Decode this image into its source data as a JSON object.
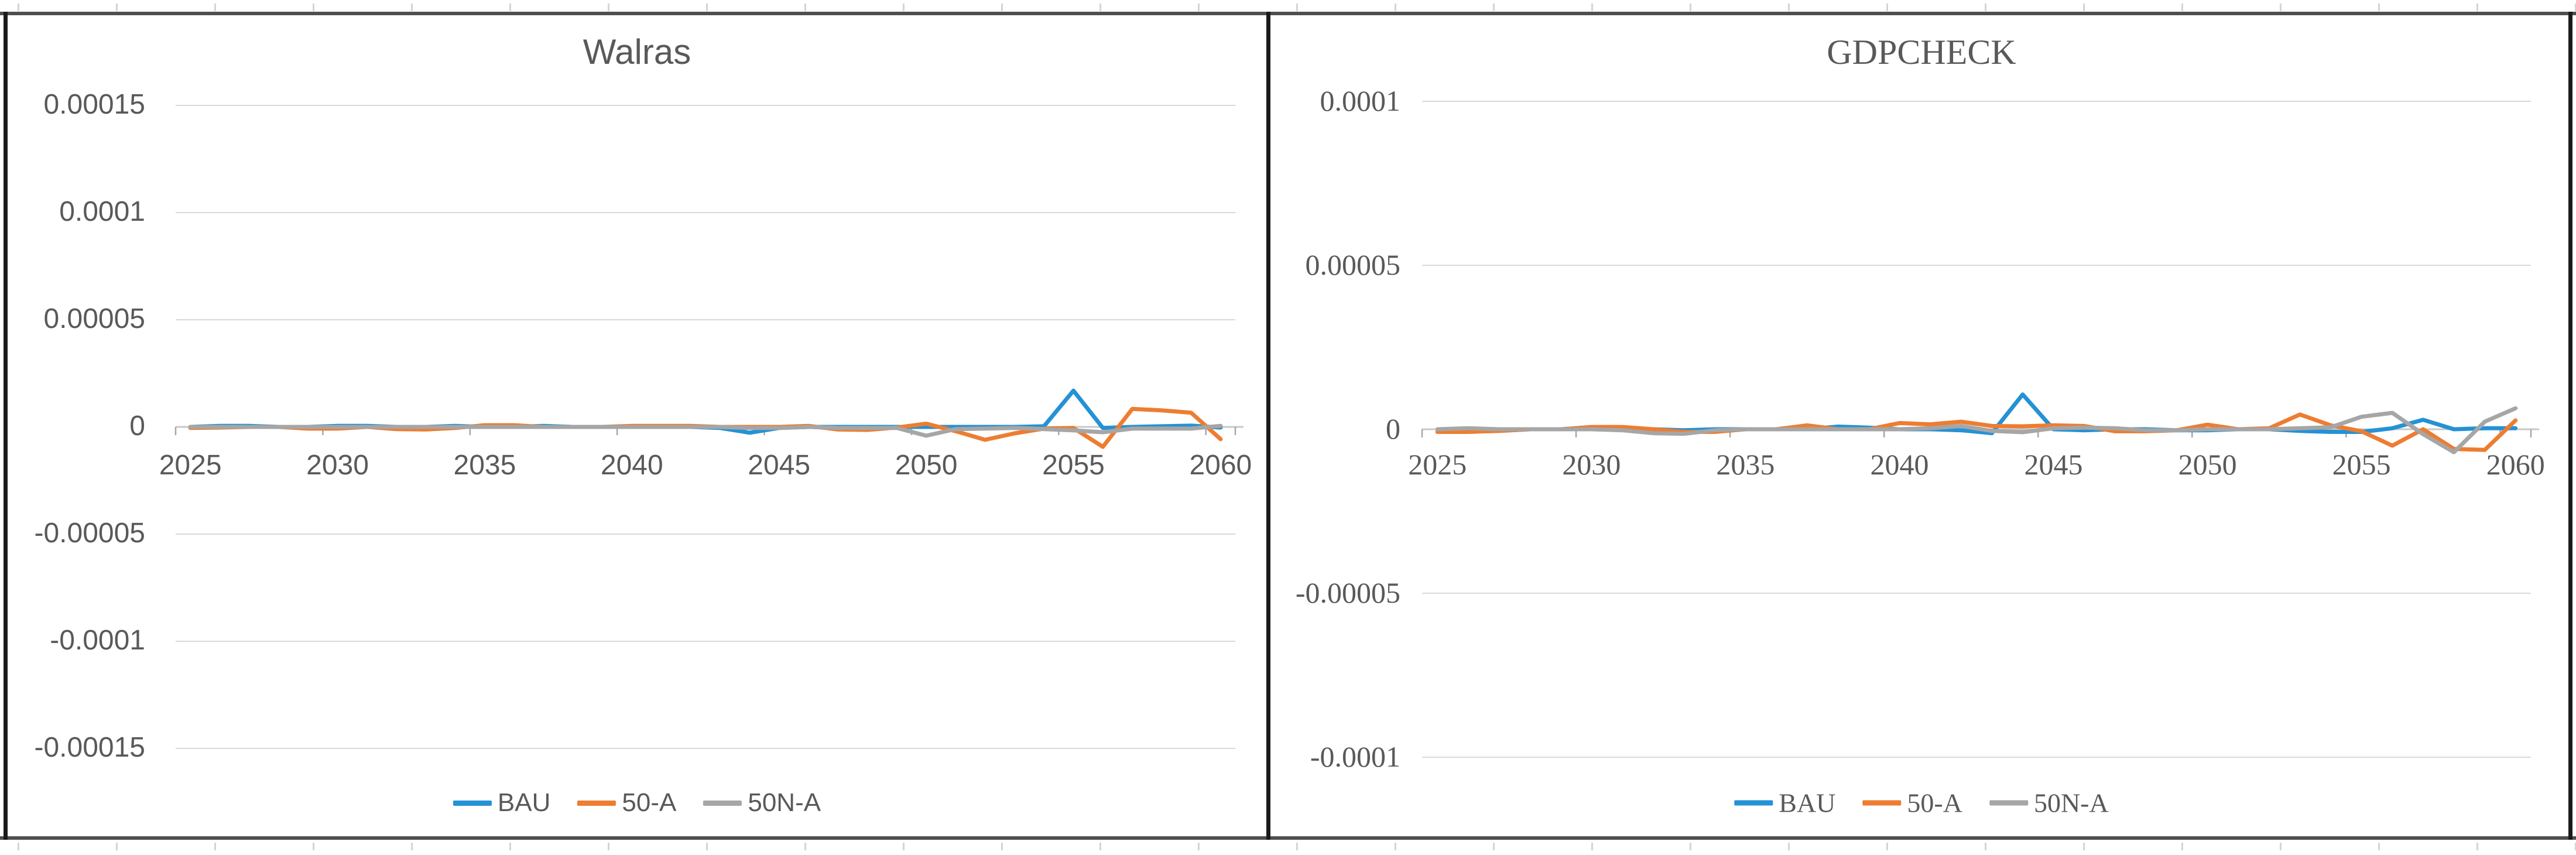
{
  "window": {
    "description": "Two Excel line charts side by side inside a dark frame"
  },
  "colors": {
    "series_blue": "#2492D5",
    "series_orange": "#ED7D31",
    "series_gray": "#A6A6A6",
    "gridline": "#D9D9D9",
    "axis_line": "#C8C8C8",
    "axis_tick": "#A6A6A6",
    "text": "#595959",
    "frame_horizontal": "#4F4F4F",
    "frame_vertical": "#1A1A1A",
    "outer_tick": "#D4D4D4",
    "background": "#FFFFFF"
  },
  "chart_data": [
    {
      "type": "line",
      "title": "Walras",
      "xlabel": "",
      "ylabel": "",
      "grid": true,
      "legend_position": "bottom",
      "ylim": [
        -0.000175,
        0.000175
      ],
      "y_ticks": [
        0.00015,
        0.0001,
        5e-05,
        0,
        -5e-05,
        -0.0001,
        -0.00015
      ],
      "y_tick_labels": [
        "0.00015",
        "0.0001",
        "0.00005",
        "0",
        "-0.00005",
        "-0.0001",
        "-0.00015"
      ],
      "x_tick_labels": [
        "2025",
        "2030",
        "2035",
        "2040",
        "2045",
        "2050",
        "2055",
        "2060"
      ],
      "years": [
        2025,
        2026,
        2027,
        2028,
        2029,
        2030,
        2031,
        2032,
        2033,
        2034,
        2035,
        2036,
        2037,
        2038,
        2039,
        2040,
        2041,
        2042,
        2043,
        2044,
        2045,
        2046,
        2047,
        2048,
        2049,
        2050,
        2051,
        2052,
        2053,
        2054,
        2055,
        2056,
        2057,
        2058,
        2059,
        2060
      ],
      "series": [
        {
          "name": "BAU",
          "color_key": "series_blue",
          "values": [
            0,
            5e-07,
            5e-07,
            0,
            0,
            5e-07,
            5e-07,
            0,
            0,
            5e-07,
            0,
            0,
            5e-07,
            0,
            0,
            0,
            0,
            0,
            -5e-07,
            -2.7e-06,
            -5e-07,
            0,
            0,
            0,
            0,
            0,
            0,
            0,
            0,
            3e-07,
            1.69e-05,
            -5e-07,
            0,
            3e-07,
            6e-07,
            -3e-07
          ]
        },
        {
          "name": "50-A",
          "color_key": "series_orange",
          "values": [
            -5e-07,
            -3e-07,
            0,
            0,
            -8e-07,
            -8e-07,
            0,
            -1e-06,
            -1.2e-06,
            -5e-07,
            8e-07,
            8e-07,
            0,
            0,
            0,
            5e-07,
            5e-07,
            5e-07,
            0,
            0,
            0,
            5e-07,
            -1.2e-06,
            -1.4e-06,
            -3e-07,
            1.5e-06,
            -2e-06,
            -6e-06,
            -3e-06,
            -8e-07,
            -5e-07,
            -9.3e-06,
            8.4e-06,
            7.7e-06,
            6.6e-06,
            -5.7e-06
          ]
        },
        {
          "name": "50N-A",
          "color_key": "series_gray",
          "values": [
            0,
            0,
            0,
            0,
            0,
            0,
            0,
            0,
            0,
            0,
            0,
            0,
            0,
            0,
            0,
            0,
            0,
            0,
            0,
            -5e-07,
            -5e-07,
            0,
            -5e-07,
            -5e-07,
            -5e-07,
            -4.1e-06,
            -1e-06,
            -8e-07,
            -5e-07,
            -1e-06,
            -1.6e-06,
            -2.5e-06,
            -8e-07,
            -8e-07,
            -8e-07,
            5e-07
          ]
        }
      ]
    },
    {
      "type": "line",
      "title": "GDPCHECK",
      "xlabel": "",
      "ylabel": "",
      "grid": true,
      "legend_position": "bottom",
      "ylim": [
        -0.000125,
        0.000125
      ],
      "y_ticks": [
        0.0001,
        5e-05,
        0,
        -5e-05,
        -0.0001
      ],
      "y_tick_labels": [
        "0.0001",
        "0.00005",
        "0",
        "-0.00005",
        "-0.0001"
      ],
      "x_tick_labels": [
        "2025",
        "2030",
        "2035",
        "2040",
        "2045",
        "2050",
        "2055",
        "2060"
      ],
      "years": [
        2025,
        2026,
        2027,
        2028,
        2029,
        2030,
        2031,
        2032,
        2033,
        2034,
        2035,
        2036,
        2037,
        2038,
        2039,
        2040,
        2041,
        2042,
        2043,
        2044,
        2045,
        2046,
        2047,
        2048,
        2049,
        2050,
        2051,
        2052,
        2053,
        2054,
        2055,
        2056,
        2057,
        2058,
        2059,
        2060
      ],
      "series": [
        {
          "name": "BAU",
          "color_key": "series_blue",
          "values": [
            -8e-07,
            -3e-07,
            -5e-07,
            0,
            0,
            0,
            0,
            0,
            -3e-07,
            0,
            0,
            0,
            0,
            8e-07,
            5e-07,
            0,
            0,
            -3e-07,
            -1.2e-06,
            1.06e-05,
            0,
            -3e-07,
            0,
            0,
            -3e-07,
            -3e-07,
            0,
            0,
            -5e-07,
            -8e-07,
            -8e-07,
            3e-07,
            2.9e-06,
            0,
            3e-07,
            3e-07
          ]
        },
        {
          "name": "50-A",
          "color_key": "series_orange",
          "values": [
            -8e-07,
            -8e-07,
            -5e-07,
            0,
            0,
            7e-07,
            7e-07,
            0,
            -8e-07,
            -8e-07,
            0,
            0,
            1.2e-06,
            0,
            0,
            1.9e-06,
            1.5e-06,
            2.3e-06,
            1e-06,
            9e-07,
            1.2e-06,
            1e-06,
            -6e-07,
            -6e-07,
            -3e-07,
            1.4e-06,
            0,
            3e-07,
            4.5e-06,
            1.2e-06,
            -6e-07,
            -5e-06,
            0,
            -6e-06,
            -6.3e-06,
            2.7e-06
          ]
        },
        {
          "name": "50N-A",
          "color_key": "series_gray",
          "values": [
            0,
            3e-07,
            0,
            0,
            0,
            0,
            -3e-07,
            -1.2e-06,
            -1.4e-06,
            -3e-07,
            0,
            0,
            0,
            0,
            0,
            0,
            3e-07,
            1e-06,
            -5e-07,
            -9e-07,
            3e-07,
            5e-07,
            3e-07,
            -3e-07,
            -3e-07,
            0,
            0,
            0,
            3e-07,
            6e-07,
            3.8e-06,
            5e-06,
            -1.5e-06,
            -7e-06,
            2.3e-06,
            6.4e-06
          ]
        }
      ]
    }
  ]
}
